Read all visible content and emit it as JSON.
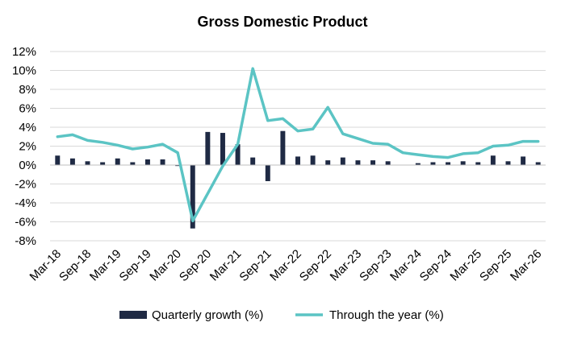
{
  "chart_data": {
    "type": "bar",
    "title": "Gross Domestic Product",
    "xlabel": "",
    "ylabel": "",
    "ylim": [
      -8,
      12
    ],
    "yticks": [
      "12%",
      "10%",
      "8%",
      "6%",
      "4%",
      "2%",
      "0%",
      "-2%",
      "-4%",
      "-6%",
      "-8%"
    ],
    "x_tick_labels": [
      "Mar-18",
      "Sep-18",
      "Mar-19",
      "Sep-19",
      "Mar-20",
      "Sep-20",
      "Mar-21",
      "Sep-21",
      "Mar-22",
      "Sep-22",
      "Mar-23",
      "Sep-23",
      "Mar-24",
      "Sep-24",
      "Mar-25",
      "Sep-25",
      "Mar-26"
    ],
    "categories": [
      "Mar-18",
      "Jun-18",
      "Sep-18",
      "Dec-18",
      "Mar-19",
      "Jun-19",
      "Sep-19",
      "Dec-19",
      "Mar-20",
      "Jun-20",
      "Sep-20",
      "Dec-20",
      "Mar-21",
      "Jun-21",
      "Sep-21",
      "Dec-21",
      "Mar-22",
      "Jun-22",
      "Sep-22",
      "Dec-22",
      "Mar-23",
      "Jun-23",
      "Sep-23",
      "Dec-23",
      "Mar-24",
      "Jun-24",
      "Sep-24",
      "Dec-24",
      "Mar-25",
      "Jun-25",
      "Sep-25",
      "Dec-25",
      "Mar-26"
    ],
    "grid": true,
    "legend_position": "bottom",
    "series": [
      {
        "name": "Quarterly growth (%)",
        "type": "bar",
        "color": "#1f2a44",
        "values": [
          1.0,
          0.7,
          0.4,
          0.3,
          0.7,
          0.3,
          0.6,
          0.6,
          -0.1,
          -6.7,
          3.5,
          3.4,
          2.2,
          0.8,
          -1.7,
          3.6,
          0.9,
          1.0,
          0.5,
          0.8,
          0.5,
          0.5,
          0.4,
          0.0,
          0.2,
          0.3,
          0.3,
          0.4,
          0.3,
          1.0,
          0.4,
          0.9,
          0.3
        ]
      },
      {
        "name": "Through the year (%)",
        "type": "line",
        "color": "#5bc4c4",
        "values": [
          3.0,
          3.2,
          2.6,
          2.4,
          2.1,
          1.7,
          1.9,
          2.2,
          1.3,
          -5.9,
          -3.0,
          -0.1,
          2.2,
          10.2,
          4.7,
          4.9,
          3.6,
          3.8,
          6.1,
          3.3,
          2.8,
          2.3,
          2.2,
          1.3,
          1.1,
          0.9,
          0.8,
          1.2,
          1.3,
          2.0,
          2.1,
          2.5,
          2.5
        ]
      }
    ]
  }
}
